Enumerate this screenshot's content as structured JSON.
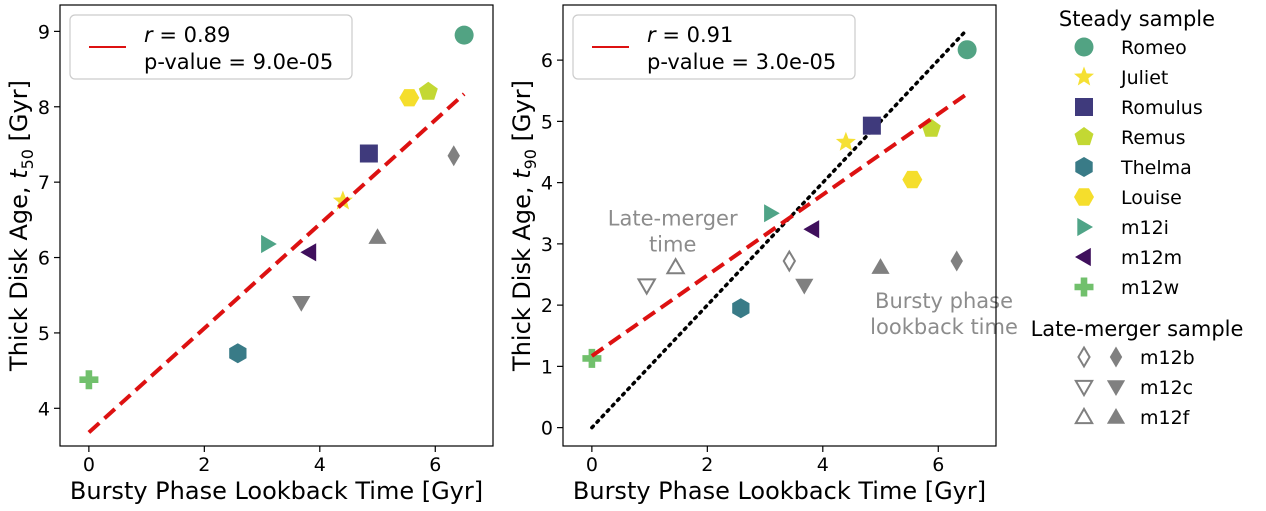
{
  "chart_data": [
    {
      "type": "scatter",
      "xlabel": "Bursty Phase Lookback Time [Gyr]",
      "ylabel": "Thick Disk Age, ",
      "ylabel_symbol": "t",
      "ylabel_subscript": "50",
      "ylabel_unit": " [Gyr]",
      "xlim": [
        -0.5,
        7.0
      ],
      "ylim": [
        3.5,
        9.35
      ],
      "xticks": [
        0,
        2,
        4,
        6
      ],
      "yticks": [
        4,
        5,
        6,
        7,
        8,
        9
      ],
      "legend": {
        "position": "top-left",
        "line1_symbol": "r",
        "line1_value": " = 0.89",
        "line2": "p-value = 9.0e-05"
      },
      "fit_line": {
        "x": [
          0,
          6.5
        ],
        "y": [
          3.68,
          8.17
        ],
        "color": "#dd1111",
        "style": "dashed"
      },
      "points": [
        {
          "name": "Romeo",
          "sample": "steady",
          "x": 6.5,
          "y": 8.95
        },
        {
          "name": "Juliet",
          "sample": "steady",
          "x": 4.4,
          "y": 6.75
        },
        {
          "name": "Romulus",
          "sample": "steady",
          "x": 4.85,
          "y": 7.38
        },
        {
          "name": "Remus",
          "sample": "steady",
          "x": 5.88,
          "y": 8.2
        },
        {
          "name": "Thelma",
          "sample": "steady",
          "x": 2.58,
          "y": 4.73
        },
        {
          "name": "Louise",
          "sample": "steady",
          "x": 5.55,
          "y": 8.12
        },
        {
          "name": "m12i",
          "sample": "steady",
          "x": 3.1,
          "y": 6.18
        },
        {
          "name": "m12m",
          "sample": "steady",
          "x": 3.82,
          "y": 6.07
        },
        {
          "name": "m12w",
          "sample": "steady",
          "x": 0.0,
          "y": 4.38
        },
        {
          "name": "m12b",
          "sample": "late-merger",
          "x": 6.32,
          "y": 7.35
        },
        {
          "name": "m12c",
          "sample": "late-merger",
          "x": 3.68,
          "y": 5.4
        },
        {
          "name": "m12f",
          "sample": "late-merger",
          "x": 5.0,
          "y": 6.27
        }
      ]
    },
    {
      "type": "scatter",
      "xlabel": "Bursty Phase Lookback Time [Gyr]",
      "ylabel": "Thick Disk Age, ",
      "ylabel_symbol": "t",
      "ylabel_subscript": "90",
      "ylabel_unit": " [Gyr]",
      "xlim": [
        -0.5,
        7.0
      ],
      "ylim": [
        -0.3,
        6.9
      ],
      "xticks": [
        0,
        2,
        4,
        6
      ],
      "yticks": [
        0,
        1,
        2,
        3,
        4,
        5,
        6
      ],
      "legend": {
        "position": "top-left",
        "line1_symbol": "r",
        "line1_value": " = 0.91",
        "line2": "p-value = 3.0e-05"
      },
      "fit_line": {
        "x": [
          0,
          6.5
        ],
        "y": [
          1.17,
          5.45
        ],
        "color": "#dd1111",
        "style": "dashed"
      },
      "one_to_one_line": {
        "x": [
          0,
          6.5
        ],
        "y": [
          0,
          6.5
        ],
        "color": "#000000",
        "style": "dotted"
      },
      "annotations": [
        {
          "lines": [
            "Late-merger",
            "time"
          ],
          "x": 1.4,
          "y": 3.3
        },
        {
          "lines": [
            "Bursty phase",
            "lookback time"
          ],
          "x": 6.1,
          "y": 1.95
        }
      ],
      "points": [
        {
          "name": "Romeo",
          "sample": "steady",
          "x": 6.5,
          "y": 6.17
        },
        {
          "name": "Juliet",
          "sample": "steady",
          "x": 4.4,
          "y": 4.66
        },
        {
          "name": "Romulus",
          "sample": "steady",
          "x": 4.85,
          "y": 4.93
        },
        {
          "name": "Remus",
          "sample": "steady",
          "x": 5.88,
          "y": 4.88
        },
        {
          "name": "Thelma",
          "sample": "steady",
          "x": 2.58,
          "y": 1.95
        },
        {
          "name": "Louise",
          "sample": "steady",
          "x": 5.55,
          "y": 4.05
        },
        {
          "name": "m12i",
          "sample": "steady",
          "x": 3.1,
          "y": 3.5
        },
        {
          "name": "m12m",
          "sample": "steady",
          "x": 3.82,
          "y": 3.24
        },
        {
          "name": "m12w",
          "sample": "steady",
          "x": 0.0,
          "y": 1.13
        },
        {
          "name": "m12b",
          "sample": "late-merger",
          "x": 6.32,
          "y": 2.72
        },
        {
          "name": "m12c",
          "sample": "late-merger",
          "x": 3.68,
          "y": 2.32
        },
        {
          "name": "m12f",
          "sample": "late-merger",
          "x": 5.0,
          "y": 2.62
        },
        {
          "name": "m12b",
          "sample": "late-merger-time",
          "x": 3.42,
          "y": 2.72
        },
        {
          "name": "m12c",
          "sample": "late-merger-time",
          "x": 0.95,
          "y": 2.32
        },
        {
          "name": "m12f",
          "sample": "late-merger-time",
          "x": 1.45,
          "y": 2.62
        }
      ]
    }
  ],
  "legend": {
    "steady_title": "Steady sample",
    "steady": [
      {
        "label": "Romeo",
        "marker": "circle",
        "color": "#52a383"
      },
      {
        "label": "Juliet",
        "marker": "star",
        "color": "#f5e033"
      },
      {
        "label": "Romulus",
        "marker": "square",
        "color": "#3f3a7c"
      },
      {
        "label": "Remus",
        "marker": "pentagon",
        "color": "#c3d833"
      },
      {
        "label": "Thelma",
        "marker": "hexagon",
        "color": "#397b87"
      },
      {
        "label": "Louise",
        "marker": "hexagon2",
        "color": "#f5de2c"
      },
      {
        "label": "m12i",
        "marker": "triangle-right",
        "color": "#4fa487"
      },
      {
        "label": "m12m",
        "marker": "triangle-left",
        "color": "#3f0f5c"
      },
      {
        "label": "m12w",
        "marker": "plus",
        "color": "#71c06c"
      }
    ],
    "late_title": "Late-merger sample",
    "late": [
      {
        "label": "m12b",
        "marker": "diamond"
      },
      {
        "label": "m12c",
        "marker": "triangle-down"
      },
      {
        "label": "m12f",
        "marker": "triangle-up"
      }
    ],
    "late_color": "#808080"
  }
}
